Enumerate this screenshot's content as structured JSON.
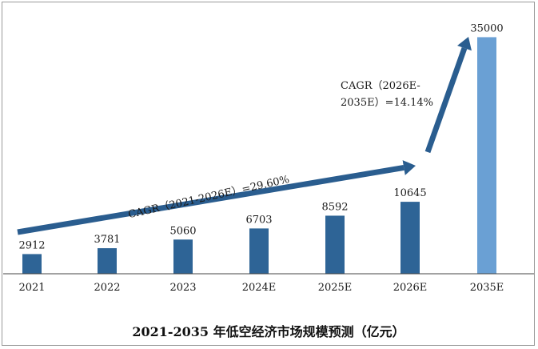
{
  "chart_data": {
    "type": "bar",
    "title": "2021-2035 年低空经济市场规模预测（亿元）",
    "categories": [
      "2021",
      "2022",
      "2023",
      "2024E",
      "2025E",
      "2026E",
      "2035E"
    ],
    "values": [
      2912,
      3781,
      5060,
      6703,
      8592,
      10645,
      35000
    ],
    "unit": "亿元",
    "annotations": [
      {
        "text": "CAGR（2021-2026E）=29.60%",
        "from": "2021",
        "to": "2026E"
      },
      {
        "line1": "CAGR（2026E-",
        "line2": "2035E）=14.14%",
        "from": "2026E",
        "to": "2035E"
      }
    ],
    "bar_color": "#2e6496",
    "highlight_color": "#6aa0d4",
    "arrow_color": "#2a5d8f",
    "ylim": [
      0,
      36000
    ],
    "grid": false,
    "legend": "none"
  }
}
